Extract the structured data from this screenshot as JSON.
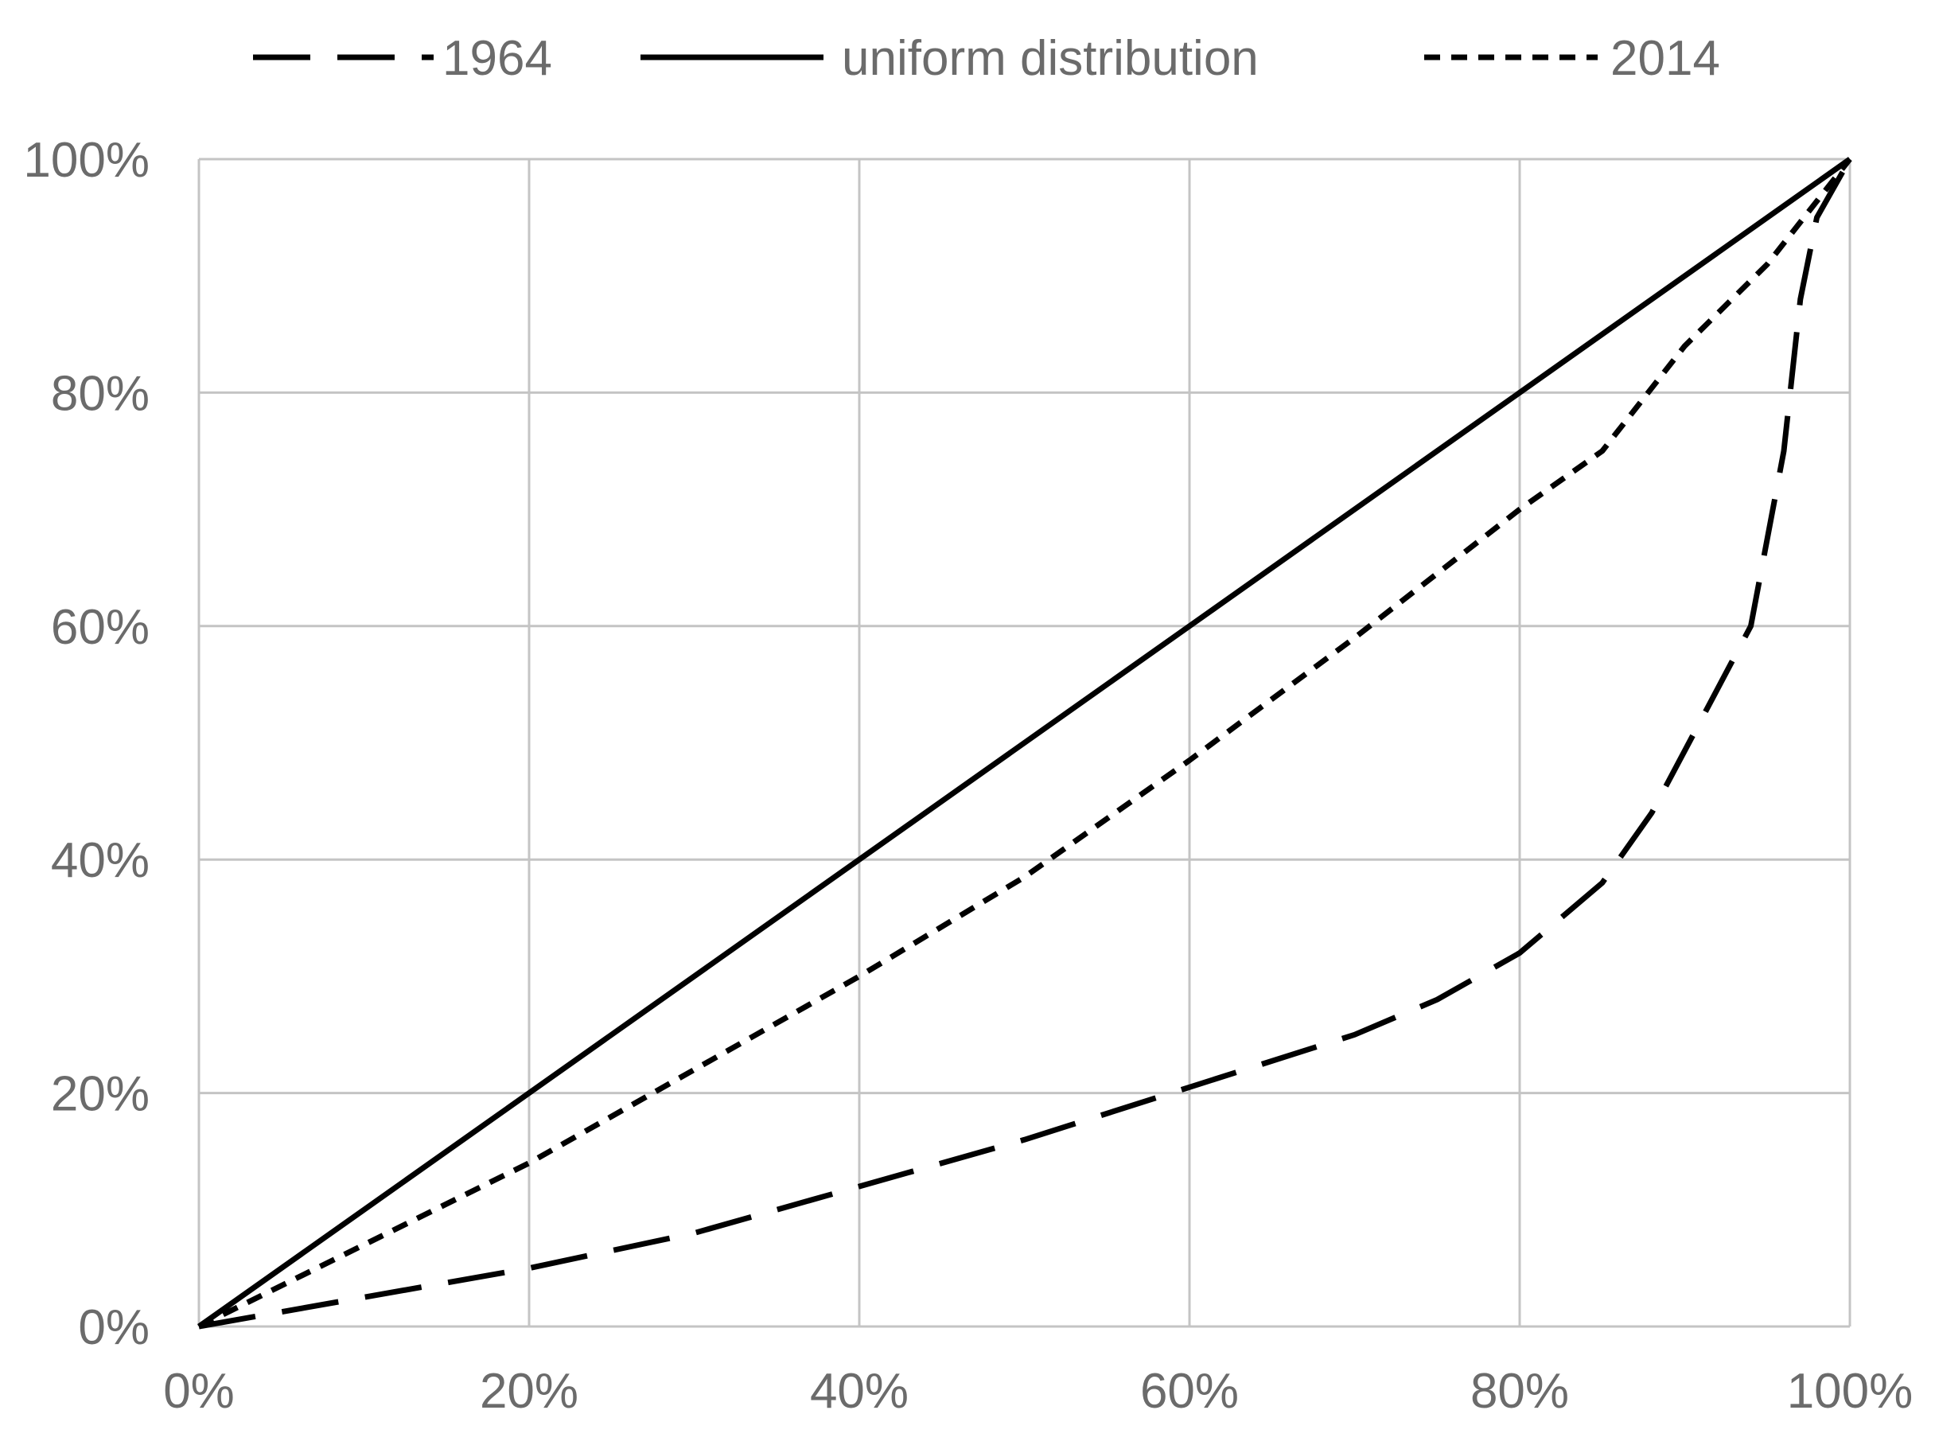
{
  "chart_data": {
    "type": "line",
    "title": "",
    "xlabel": "",
    "ylabel": "",
    "xlim": [
      0,
      100
    ],
    "ylim": [
      0,
      100
    ],
    "x_ticks": [
      0,
      20,
      40,
      60,
      80,
      100
    ],
    "y_ticks": [
      0,
      20,
      40,
      60,
      80,
      100
    ],
    "x_tick_labels": [
      "0%",
      "20%",
      "40%",
      "60%",
      "80%",
      "100%"
    ],
    "y_tick_labels": [
      "0%",
      "20%",
      "40%",
      "60%",
      "80%",
      "100%"
    ],
    "grid": true,
    "legend_position": "top",
    "series": [
      {
        "name": "1964",
        "style": "long-dash",
        "color": "#000000",
        "points": [
          [
            0,
            0
          ],
          [
            10,
            2.5
          ],
          [
            20,
            5
          ],
          [
            30,
            8
          ],
          [
            40,
            12
          ],
          [
            50,
            16
          ],
          [
            60,
            20.5
          ],
          [
            70,
            25
          ],
          [
            75,
            28
          ],
          [
            80,
            32
          ],
          [
            85,
            38
          ],
          [
            88,
            44
          ],
          [
            91,
            52
          ],
          [
            94,
            60
          ],
          [
            96,
            75
          ],
          [
            97,
            88
          ],
          [
            98,
            95
          ],
          [
            100,
            100
          ]
        ]
      },
      {
        "name": "uniform distribution",
        "style": "solid",
        "color": "#000000",
        "points": [
          [
            0,
            0
          ],
          [
            100,
            100
          ]
        ]
      },
      {
        "name": "2014",
        "style": "short-dash",
        "color": "#000000",
        "points": [
          [
            0,
            0
          ],
          [
            10,
            7
          ],
          [
            20,
            14
          ],
          [
            30,
            22
          ],
          [
            40,
            30
          ],
          [
            50,
            38.5
          ],
          [
            60,
            48.5
          ],
          [
            70,
            59
          ],
          [
            80,
            70
          ],
          [
            85,
            75
          ],
          [
            90,
            84
          ],
          [
            95,
            91
          ],
          [
            100,
            100
          ]
        ]
      }
    ]
  }
}
